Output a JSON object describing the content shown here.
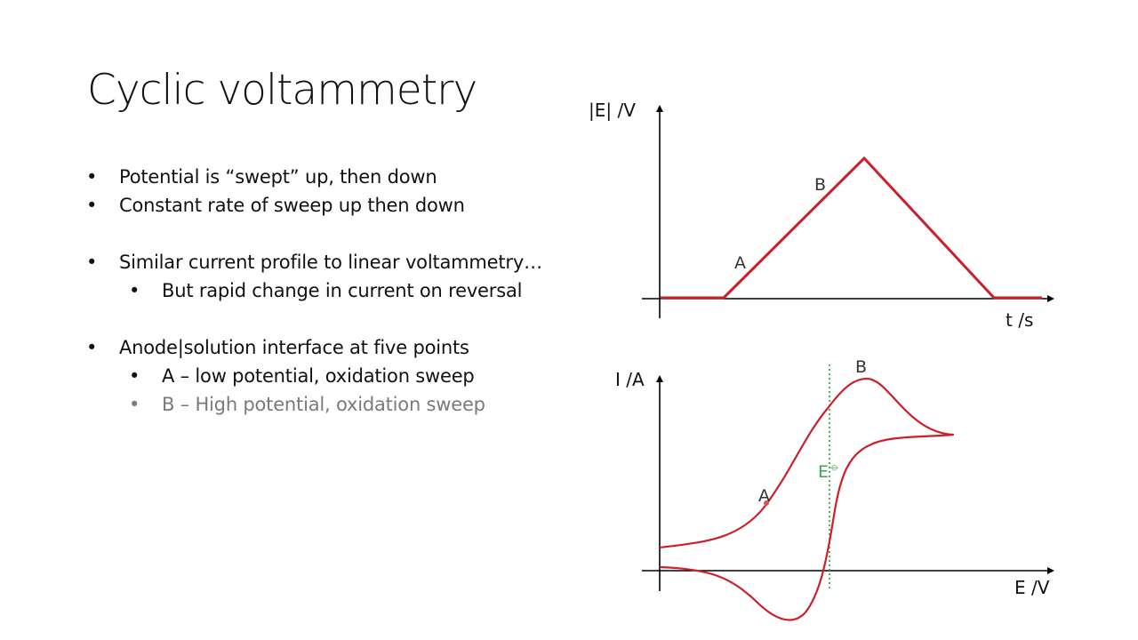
{
  "slide": {
    "title": "Cyclic voltammetry",
    "bullets": [
      {
        "level": 1,
        "marker": "•",
        "text": "Potential is “swept” up, then down",
        "dimmed": false
      },
      {
        "level": 1,
        "marker": "•",
        "text": "Constant rate of sweep up then down",
        "dimmed": false
      },
      {
        "level": 1,
        "marker": "•",
        "text": "Similar current profile to linear voltammetry…",
        "dimmed": false
      },
      {
        "level": 2,
        "marker": "•",
        "text": "But rapid change in current on reversal",
        "dimmed": false
      },
      {
        "level": 1,
        "marker": "•",
        "text": "Anode|solution interface at five points",
        "dimmed": false
      },
      {
        "level": 2,
        "marker": "•",
        "text": "A – low potential, oxidation sweep",
        "dimmed": false
      },
      {
        "level": 2,
        "marker": "•",
        "text": "B – High potential, oxidation sweep",
        "dimmed": true
      }
    ]
  },
  "top_diagram": {
    "y_axis_label": "|E| /V",
    "x_axis_label": "t /s",
    "point_a_label": "A",
    "point_b_label": "B"
  },
  "bottom_diagram": {
    "y_axis_label": "I /A",
    "x_axis_label": "E /V",
    "point_a_label": "A",
    "point_b_label": "B",
    "standard_potential_label": "E",
    "standard_potential_symbol": "⦵"
  },
  "colors": {
    "curve": "#cc1f2a",
    "axis": "#000000",
    "standard_potential": "#3aa84a",
    "marker_dot": "#e05050",
    "dimmed_text": "#7a7a7a"
  }
}
